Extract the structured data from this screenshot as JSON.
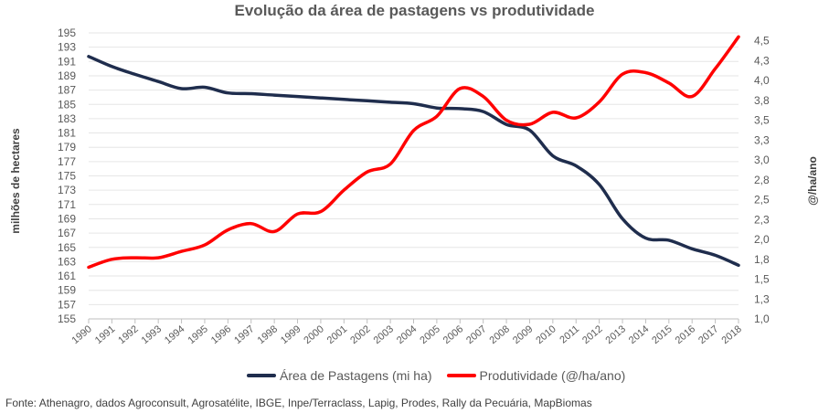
{
  "chart_data": {
    "type": "line",
    "title": "Evolução da área de pastagens vs produtividade",
    "ylabel_left": "milhões de hectares",
    "ylabel_right": "@/ha/ano",
    "x": [
      "1990",
      "1991",
      "1992",
      "1993",
      "1994",
      "1995",
      "1996",
      "1997",
      "1998",
      "1999",
      "2000",
      "2001",
      "2002",
      "2003",
      "2004",
      "2005",
      "2006",
      "2007",
      "2008",
      "2009",
      "2010",
      "2011",
      "2012",
      "2013",
      "2014",
      "2015",
      "2016",
      "2017",
      "2018"
    ],
    "y_left": {
      "min": 155,
      "max": 195,
      "ticks": [
        "155",
        "157",
        "159",
        "161",
        "163",
        "165",
        "167",
        "169",
        "171",
        "173",
        "175",
        "177",
        "179",
        "181",
        "183",
        "185",
        "187",
        "189",
        "191",
        "193",
        "195"
      ]
    },
    "y_right": {
      "min": 1.0,
      "max": 4.6,
      "ticks": [
        "1,0",
        "1,3",
        "1,5",
        "1,8",
        "2,0",
        "2,3",
        "2,5",
        "2,8",
        "3,0",
        "3,3",
        "3,5",
        "3,8",
        "4,0",
        "4,3",
        "4,5"
      ],
      "tick_values": [
        1.0,
        1.25,
        1.5,
        1.75,
        2.0,
        2.25,
        2.5,
        2.75,
        3.0,
        3.25,
        3.5,
        3.75,
        4.0,
        4.25,
        4.5
      ]
    },
    "grid": true,
    "legend_position": "bottom",
    "series": [
      {
        "name": "Área de Pastagens (mi ha)",
        "axis": "left",
        "color": "#1f2d4d",
        "values": [
          191.7,
          190.3,
          189.2,
          188.2,
          187.2,
          187.4,
          186.6,
          186.5,
          186.3,
          186.1,
          185.9,
          185.7,
          185.5,
          185.3,
          185.1,
          184.5,
          184.4,
          184.0,
          182.2,
          181.4,
          177.8,
          176.4,
          173.8,
          169.0,
          166.3,
          166.0,
          164.8,
          163.9,
          162.5
        ]
      },
      {
        "name": "Produtividade (@/ha/ano)",
        "axis": "right",
        "color": "#ff0000",
        "values": [
          1.65,
          1.75,
          1.77,
          1.77,
          1.85,
          1.93,
          2.12,
          2.2,
          2.1,
          2.32,
          2.35,
          2.62,
          2.85,
          2.95,
          3.37,
          3.55,
          3.9,
          3.8,
          3.5,
          3.45,
          3.6,
          3.53,
          3.73,
          4.08,
          4.1,
          3.97,
          3.8,
          4.15,
          4.55
        ]
      }
    ]
  },
  "source": "Fonte: Athenagro, dados Agroconsult, Agrosatélite, IBGE, Inpe/Terraclass,  Lapig, Prodes, Rally da Pecuária, MapBiomas"
}
